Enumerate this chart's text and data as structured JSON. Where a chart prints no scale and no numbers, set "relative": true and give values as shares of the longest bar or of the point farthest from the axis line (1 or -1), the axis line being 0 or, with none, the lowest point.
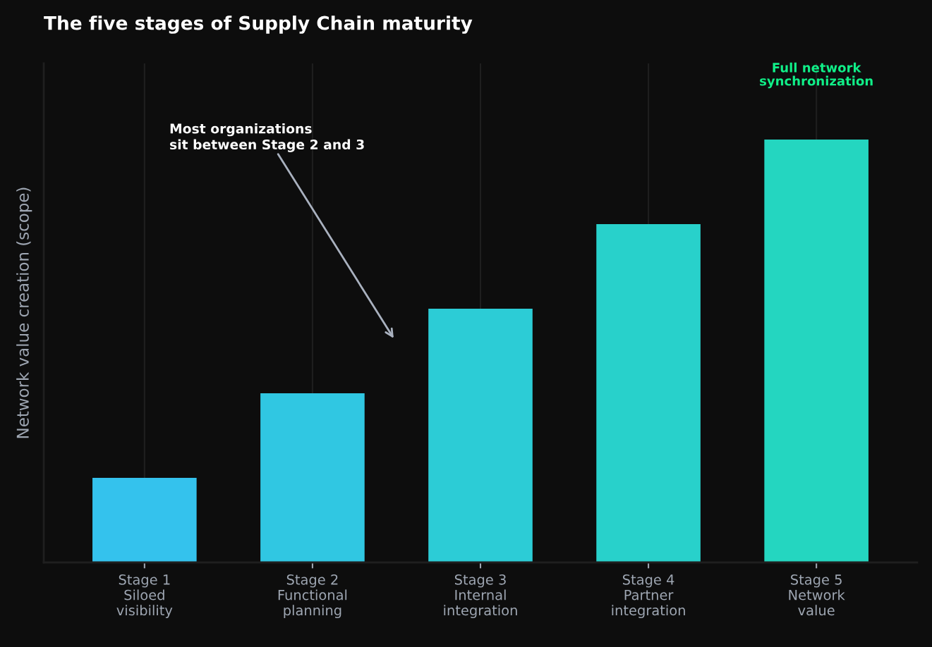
{
  "chart_data": {
    "type": "bar",
    "title": "The five stages of Supply Chain maturity",
    "ylabel": "Network value creation (scope)",
    "categories": [
      "Stage 1\nSiloed\nvisibility",
      "Stage 2\nFunctional\nplanning",
      "Stage 3\nInternal\nintegration",
      "Stage 4\nPartner\nintegration",
      "Stage 5\nNetwork\nvalue"
    ],
    "values": [
      0.2,
      0.4,
      0.6,
      0.8,
      1
    ],
    "colors": [
      "#34c2ed",
      "#30c7e2",
      "#2cccd6",
      "#28d1cb",
      "#24d6c0"
    ],
    "relative": true,
    "grid": "x",
    "annotations": [
      "Most organizations\nsit between Stage 2 and 3",
      "Full network\nsynchronization"
    ]
  }
}
